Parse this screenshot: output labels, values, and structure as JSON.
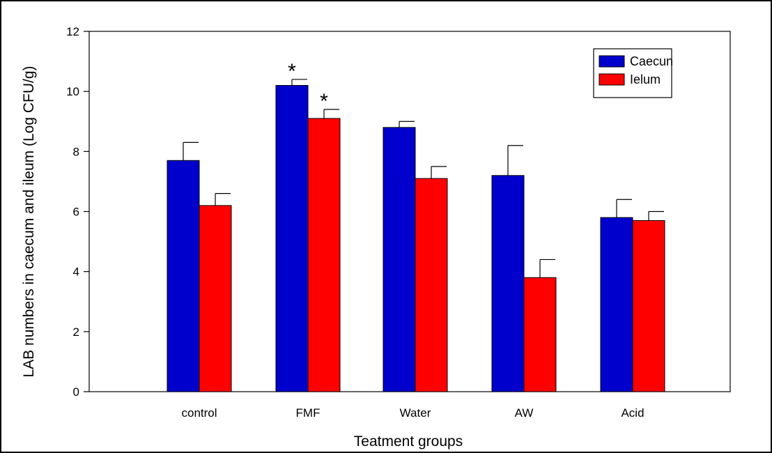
{
  "chart_data": {
    "type": "bar",
    "title": "",
    "xlabel": "Teatment groups",
    "ylabel": "LAB numbers in caecum and ileum (Log CFU/g)",
    "categories": [
      "control",
      "FMF",
      "Water",
      "AW",
      "Acid"
    ],
    "ylim": [
      0,
      12
    ],
    "yticks": [
      0,
      2,
      4,
      6,
      8,
      10,
      12
    ],
    "grid": false,
    "legend_position": "top-right",
    "series": [
      {
        "name": "Caecun",
        "color": "#0000cc",
        "values": [
          7.7,
          10.2,
          8.8,
          7.2,
          5.8
        ],
        "errors": [
          0.6,
          0.2,
          0.2,
          1.0,
          0.6
        ],
        "annotations": [
          "",
          "*",
          "",
          "",
          ""
        ]
      },
      {
        "name": "Ielum",
        "color": "#ff0000",
        "values": [
          6.2,
          9.1,
          7.1,
          3.8,
          5.7
        ],
        "errors": [
          0.4,
          0.3,
          0.4,
          0.6,
          0.3
        ],
        "annotations": [
          "",
          "*",
          "",
          "",
          ""
        ]
      }
    ]
  }
}
